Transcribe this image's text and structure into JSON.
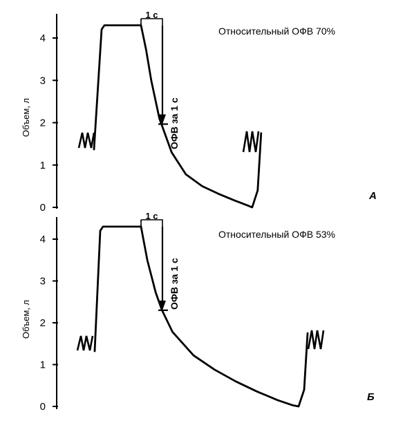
{
  "chart_data": [
    {
      "type": "line",
      "panel_letter": "А",
      "annotation": "Относительный ОФВ 70%",
      "ylabel": "Объем, л",
      "ylim": [
        0,
        4.4
      ],
      "yticks": [
        "0",
        "1",
        "2",
        "3",
        "4"
      ],
      "time_bracket_label": "1 с",
      "fev_label": "ОФВ за 1 с",
      "series": [
        {
          "x": [
            0.0,
            0.25,
            0.5,
            0.9,
            1.5,
            2.2,
            3.0,
            3.8,
            4.6,
            5.2,
            5.45
          ],
          "values": [
            4.3,
            3.72,
            3.0,
            2.1,
            1.3,
            0.78,
            0.5,
            0.32,
            0.16,
            0.05,
            0.0
          ]
        }
      ]
    },
    {
      "type": "line",
      "panel_letter": "Б",
      "annotation": "Относительный ОФВ 53%",
      "ylabel": "Объем, л",
      "ylim": [
        0,
        4.4
      ],
      "yticks": [
        "0",
        "1",
        "2",
        "3",
        "4"
      ],
      "time_bracket_label": "1 с",
      "fev_label": "ОФВ за 1 с",
      "series": [
        {
          "x": [
            0.0,
            0.3,
            0.7,
            1.0,
            1.5,
            2.5,
            3.5,
            4.5,
            5.5,
            6.5,
            7.2,
            7.5
          ],
          "values": [
            4.3,
            3.5,
            2.72,
            2.3,
            1.78,
            1.22,
            0.88,
            0.6,
            0.36,
            0.15,
            0.03,
            0.0
          ]
        }
      ]
    }
  ]
}
